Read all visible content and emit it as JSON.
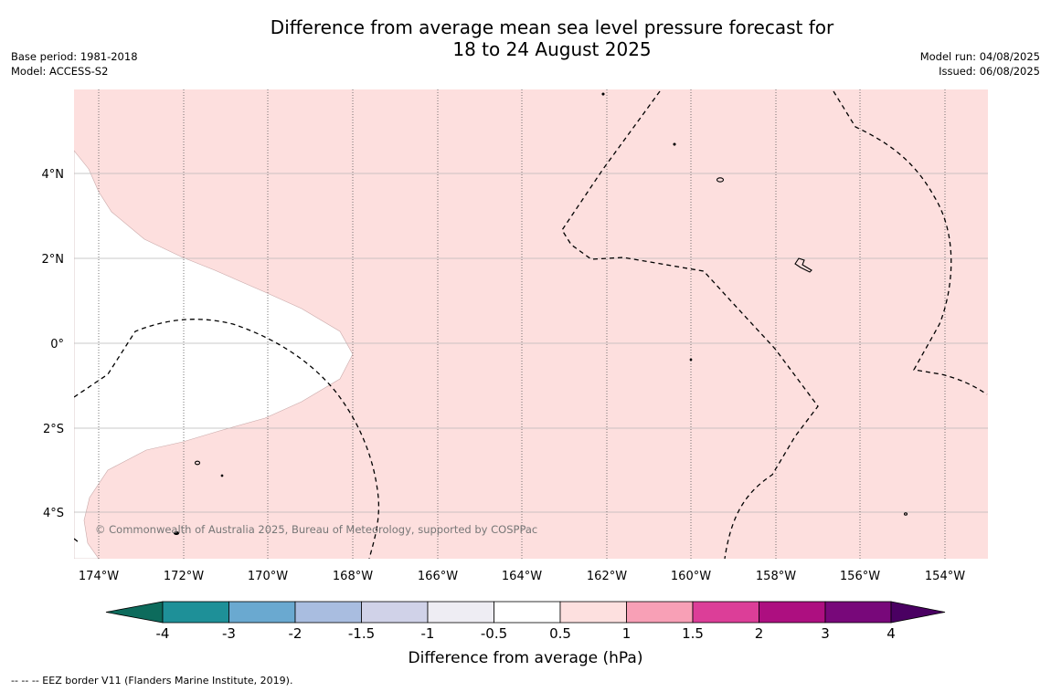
{
  "title_line1": "Difference from average mean sea level pressure forecast for",
  "title_line2": "18 to 24 August 2025",
  "base_period": "Base period: 1981-2018",
  "model": "Model: ACCESS-S2",
  "model_run": "Model run: 04/08/2025",
  "issued": "Issued: 06/08/2025",
  "copyright": "© Commonwealth of Australia 2025, Bureau of Meteorology, supported by COSPPac",
  "footer_note": "-- -- -- EEZ border V11 (Flanders Marine Institute, 2019).",
  "colorbar": {
    "label": "Difference from average (hPa)",
    "tick_labels": [
      "-4",
      "-3",
      "-2",
      "-1.5",
      "-1",
      "-0.5",
      "0.5",
      "1",
      "1.5",
      "2",
      "3",
      "4"
    ],
    "colors": [
      "#0d6b5c",
      "#1e9098",
      "#6aa9d0",
      "#a9bde0",
      "#d0d2e8",
      "#eeedf3",
      "#ffffff",
      "#fde0df",
      "#f8a0b6",
      "#dc3e98",
      "#ad0f80",
      "#78087a",
      "#4a0062"
    ]
  },
  "colors": {
    "positive_fill": "#fddfde",
    "neutral_fill": "#ffffff",
    "gridline": "#b8b8b8",
    "eez": "#000000"
  },
  "map": {
    "lon_labels": [
      "174°W",
      "172°W",
      "170°W",
      "168°W",
      "166°W",
      "164°W",
      "162°W",
      "160°W",
      "158°W",
      "156°W",
      "154°W"
    ],
    "lat_labels": [
      "4°N",
      "2°N",
      "0°",
      "2°S",
      "4°S"
    ]
  }
}
